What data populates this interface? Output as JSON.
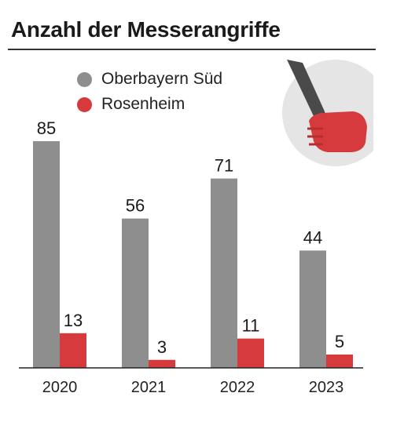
{
  "title": "Anzahl der Messerangriffe",
  "colors": {
    "series1": "#8e8e8e",
    "series2": "#d63a3d",
    "circle": "#e5e5e5",
    "blade": "#4a4a4a"
  },
  "icon": "knife-in-fist-icon",
  "chart_data": {
    "type": "bar",
    "title": "Anzahl der Messerangriffe",
    "categories": [
      "2020",
      "2021",
      "2022",
      "2023"
    ],
    "series": [
      {
        "name": "Oberbayern Süd",
        "values": [
          85,
          56,
          71,
          44
        ]
      },
      {
        "name": "Rosenheim",
        "values": [
          13,
          3,
          11,
          5
        ]
      }
    ],
    "legend": "top-left",
    "grid": false
  }
}
